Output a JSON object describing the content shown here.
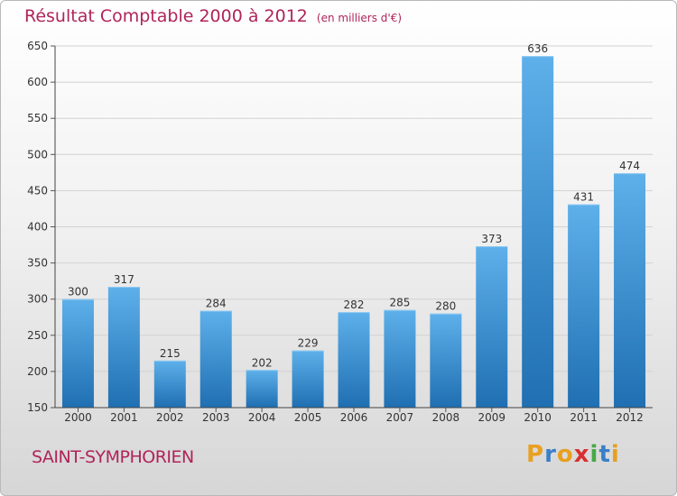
{
  "title": "Résultat Comptable 2000 à 2012",
  "unit": "(en milliers d'€)",
  "city": "SAINT-SYMPHORIEN",
  "logo": {
    "letters": [
      "P",
      "r",
      "o",
      "x",
      "i",
      "t",
      "i"
    ],
    "colors": [
      "#e8a020",
      "#3a7fc8",
      "#e8a020",
      "#d83030",
      "#48a848",
      "#3a7fc8",
      "#e8a020"
    ]
  },
  "colors": {
    "title": "#b0245a",
    "bar_top": "#5eb0ea",
    "bar_bottom": "#1f6fb2",
    "grid": "#d2d2d2"
  },
  "chart_data": {
    "type": "bar",
    "categories": [
      "2000",
      "2001",
      "2002",
      "2003",
      "2004",
      "2005",
      "2006",
      "2007",
      "2008",
      "2009",
      "2010",
      "2011",
      "2012"
    ],
    "values": [
      300,
      317,
      215,
      284,
      202,
      229,
      282,
      285,
      280,
      373,
      636,
      431,
      474
    ],
    "ylim": [
      150,
      650
    ],
    "yticks": [
      150,
      200,
      250,
      300,
      350,
      400,
      450,
      500,
      550,
      600,
      650
    ],
    "grid": true,
    "data_labels": true
  }
}
